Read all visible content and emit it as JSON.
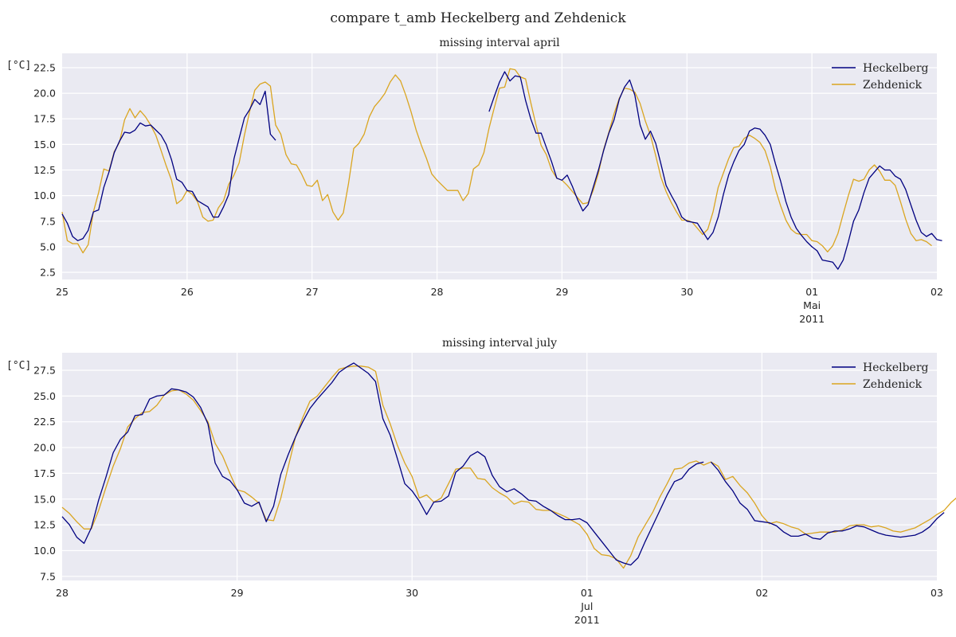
{
  "figure": {
    "title": "compare t_amb Heckelberg and Zehdenick"
  },
  "colors": {
    "heckelberg": "#000080",
    "zehdenick": "#DAA520",
    "plot_bg": "#EAEAF2",
    "grid": "#FFFFFF"
  },
  "chart_data": [
    {
      "type": "line",
      "title": "missing interval april",
      "ylabel": "[°C]",
      "ylim": [
        1.8,
        23.9
      ],
      "yticks": [
        "2.5",
        "5.0",
        "7.5",
        "10.0",
        "12.5",
        "15.0",
        "17.5",
        "20.0",
        "22.5"
      ],
      "xlim": [
        "2011-04-25 00:00",
        "2011-05-02 00:00"
      ],
      "xticks": [
        {
          "label": "25"
        },
        {
          "label": "26"
        },
        {
          "label": "27"
        },
        {
          "label": "28"
        },
        {
          "label": "29"
        },
        {
          "label": "30"
        },
        {
          "label": "01",
          "sub": [
            "Mai",
            "2011"
          ]
        },
        {
          "label": "02"
        }
      ],
      "grid": true,
      "legend": "top-right",
      "series": [
        {
          "name": "Heckelberg",
          "color": "#000080",
          "segments": [
            {
              "start": "2011-04-25 00:00",
              "step_hours": 1,
              "values": [
                8.2,
                7.3,
                6.0,
                5.6,
                5.8,
                6.6,
                8.4,
                8.6,
                10.8,
                12.3,
                14.2,
                15.3,
                16.2,
                16.1,
                16.4,
                17.1,
                16.8,
                16.9,
                16.4,
                15.9,
                15.0,
                13.5,
                11.6,
                11.3,
                10.5,
                10.4,
                9.5,
                9.2,
                8.9,
                7.9,
                7.9,
                8.9,
                10.1,
                13.6,
                15.6,
                17.6,
                18.4,
                19.4,
                18.9,
                20.2,
                16.0,
                15.4
              ]
            },
            {
              "start": "2011-04-28 10:00",
              "step_hours": 1,
              "values": [
                18.2,
                19.7,
                21.1,
                22.1,
                21.2,
                21.7,
                21.6,
                19.3,
                17.5,
                16.1,
                16.1,
                14.7,
                13.3,
                11.7,
                11.5,
                12.0,
                10.9,
                9.6,
                8.5,
                9.1,
                10.8,
                12.5,
                14.4,
                16.1,
                17.4,
                19.4,
                20.6,
                21.3,
                19.8,
                16.9,
                15.5,
                16.3,
                15.1,
                13.1,
                11.0,
                10.0,
                9.1,
                7.9,
                7.5,
                7.4,
                7.3,
                6.5,
                5.7,
                6.4,
                7.9,
                10.1,
                12.0,
                13.3,
                14.4,
                15.0,
                16.3,
                16.6,
                16.5,
                15.9,
                15.0,
                13.1,
                11.4,
                9.4,
                7.9,
                6.8,
                6.1,
                5.5,
                5.0,
                4.6,
                3.7,
                3.6,
                3.5,
                2.8,
                3.7,
                5.5,
                7.5,
                8.6,
                10.3,
                11.7,
                12.3,
                12.9,
                12.5,
                12.5,
                11.9,
                11.6,
                10.6,
                9.1,
                7.6,
                6.4,
                6.0,
                6.3,
                5.7,
                5.6
              ]
            }
          ]
        },
        {
          "name": "Zehdenick",
          "color": "#DAA520",
          "segments": [
            {
              "start": "2011-04-25 00:00",
              "step_hours": 1,
              "values": [
                8.4,
                5.6,
                5.3,
                5.3,
                4.4,
                5.2,
                8.4,
                10.3,
                12.6,
                12.4,
                14.3,
                15.2,
                17.4,
                18.5,
                17.6,
                18.3,
                17.7,
                16.9,
                15.9,
                14.4,
                12.9,
                11.5,
                9.2,
                9.6,
                10.5,
                10.1,
                9.4,
                7.9,
                7.5,
                7.6,
                8.8,
                9.5,
                11.1,
                12.0,
                13.2,
                15.9,
                18.2,
                20.3,
                20.9,
                21.1,
                20.7,
                16.9,
                16.0,
                14.0,
                13.1,
                13.0,
                12.1,
                11.0,
                10.9,
                11.5,
                9.5,
                10.1,
                8.4,
                7.6,
                8.3,
                11.2,
                14.6,
                15.1,
                16.0,
                17.7,
                18.7,
                19.3,
                20.0,
                21.1,
                21.8,
                21.2,
                19.8,
                18.2,
                16.4,
                14.9,
                13.6,
                12.1,
                11.5,
                11.0,
                10.5,
                10.5,
                10.5,
                9.5,
                10.2,
                12.6,
                13.0,
                14.2,
                16.6,
                18.6,
                20.5,
                20.6,
                22.4,
                22.3,
                21.6,
                21.4,
                19.1,
                16.9,
                14.9,
                14.0,
                12.5,
                11.7,
                11.5,
                11.0,
                10.4,
                9.8,
                9.2,
                9.3,
                10.5,
                12.2,
                14.5,
                16.2,
                18.0,
                19.5,
                20.5,
                20.4,
                20.1,
                19.0,
                17.3,
                15.9,
                13.9,
                11.8,
                10.4,
                9.3,
                8.4,
                7.6,
                7.6,
                7.4,
                6.8,
                6.2,
                6.7,
                8.4,
                10.8,
                12.2,
                13.6,
                14.7,
                14.8,
                15.6,
                15.9,
                15.6,
                15.2,
                14.4,
                12.8,
                10.6,
                9.0,
                7.6,
                6.7,
                6.3,
                6.2,
                6.2,
                5.6,
                5.5,
                5.1,
                4.5,
                5.1,
                6.3,
                8.2,
                10.0,
                11.6,
                11.4,
                11.6,
                12.5,
                13.0,
                12.4,
                11.5,
                11.5,
                11.0,
                9.4,
                7.7,
                6.3,
                5.6,
                5.7,
                5.5,
                5.1
              ]
            }
          ]
        }
      ]
    },
    {
      "type": "line",
      "title": "missing interval july",
      "ylabel": "[°C]",
      "ylim": [
        7.1,
        29.2
      ],
      "yticks": [
        "7.5",
        "10.0",
        "12.5",
        "15.0",
        "17.5",
        "20.0",
        "22.5",
        "25.0",
        "27.5"
      ],
      "xlim": [
        "2011-06-28 00:00",
        "2011-07-03 00:00"
      ],
      "xticks": [
        {
          "label": "28"
        },
        {
          "label": "29"
        },
        {
          "label": "30"
        },
        {
          "label": "01",
          "sub": [
            "Jul",
            "2011"
          ]
        },
        {
          "label": "02"
        },
        {
          "label": "03"
        }
      ],
      "grid": true,
      "legend": "top-right",
      "series": [
        {
          "name": "Heckelberg",
          "color": "#000080",
          "segments": [
            {
              "start": "2011-06-28 00:00",
              "step_hours": 1,
              "values": [
                13.3,
                12.5,
                11.3,
                10.7,
                12.2,
                14.9,
                17.1,
                19.5,
                20.8,
                21.5,
                23.1,
                23.2,
                24.7,
                25.0,
                25.1,
                25.7,
                25.6,
                25.4,
                24.9,
                23.9,
                22.3,
                18.5,
                17.2,
                16.8,
                15.9,
                14.6,
                14.3,
                14.7,
                12.8,
                14.3,
                17.4,
                19.3,
                21.0,
                22.5,
                23.8,
                24.7,
                25.5,
                26.3,
                27.3,
                27.8,
                28.2,
                27.7,
                27.2,
                26.4,
                22.8,
                21.2,
                18.9,
                16.5,
                15.8,
                14.8,
                13.5,
                14.7,
                14.8,
                15.3,
                17.6,
                18.2,
                19.2,
                19.6,
                19.1,
                17.3,
                16.2,
                15.7,
                16.0,
                15.5,
                14.9,
                14.8,
                14.3,
                13.9,
                13.4,
                13.0,
                13.0,
                13.1,
                12.7,
                11.8,
                10.9,
                10.0,
                9.1,
                8.8,
                8.6,
                9.3,
                10.9,
                12.4,
                13.9,
                15.4,
                16.7,
                17.0,
                17.9,
                18.4,
                18.6
              ]
            },
            {
              "start": "2011-07-01 17:00",
              "step_hours": 1,
              "values": [
                18.6,
                17.8,
                16.7,
                15.8,
                14.6,
                14.0,
                12.9,
                12.8,
                12.7,
                12.4,
                11.8,
                11.4,
                11.4,
                11.6,
                11.2,
                11.1,
                11.7,
                11.9,
                11.9,
                12.1,
                12.4,
                12.3,
                12.0,
                11.7,
                11.5,
                11.4,
                11.3,
                11.4,
                11.5,
                11.8,
                12.3,
                13.1,
                13.7
              ]
            }
          ]
        },
        {
          "name": "Zehdenick",
          "color": "#DAA520",
          "segments": [
            {
              "start": "2011-06-28 00:00",
              "step_hours": 1,
              "values": [
                14.2,
                13.6,
                12.8,
                12.1,
                12.1,
                13.9,
                16.1,
                18.2,
                19.9,
                22.0,
                22.8,
                23.4,
                23.5,
                24.1,
                25.1,
                25.5,
                25.6,
                25.2,
                24.6,
                23.6,
                22.5,
                20.4,
                19.2,
                17.5,
                15.9,
                15.7,
                15.2,
                14.6,
                13.0,
                12.9,
                15.1,
                18.1,
                21.0,
                22.9,
                24.5,
                25.0,
                25.9,
                26.8,
                27.6,
                27.8,
                27.9,
                27.9,
                27.8,
                27.4,
                24.1,
                22.3,
                20.2,
                18.5,
                17.2,
                15.1,
                15.4,
                14.7,
                15.1,
                16.5,
                17.9,
                18.0,
                18.0,
                17.0,
                16.9,
                16.1,
                15.6,
                15.2,
                14.5,
                14.8,
                14.7,
                14.0,
                13.9,
                13.9,
                13.6,
                13.3,
                12.9,
                12.5,
                11.6,
                10.2,
                9.6,
                9.5,
                9.2,
                8.3,
                9.5,
                11.3,
                12.5,
                13.7,
                15.2,
                16.5,
                17.9,
                18.0,
                18.5,
                18.7,
                18.3,
                18.6,
                18.2,
                16.9,
                17.2,
                16.3,
                15.6,
                14.6,
                13.4,
                12.6,
                12.8,
                12.6,
                12.3,
                12.1,
                11.6,
                11.7,
                11.8,
                11.8,
                11.8,
                12.0,
                12.4,
                12.5,
                12.5,
                12.3,
                12.4,
                12.2,
                11.9,
                11.8,
                12.0,
                12.2,
                12.6,
                13.0,
                13.5,
                13.9,
                14.7,
                15.3
              ]
            }
          ]
        }
      ]
    }
  ]
}
